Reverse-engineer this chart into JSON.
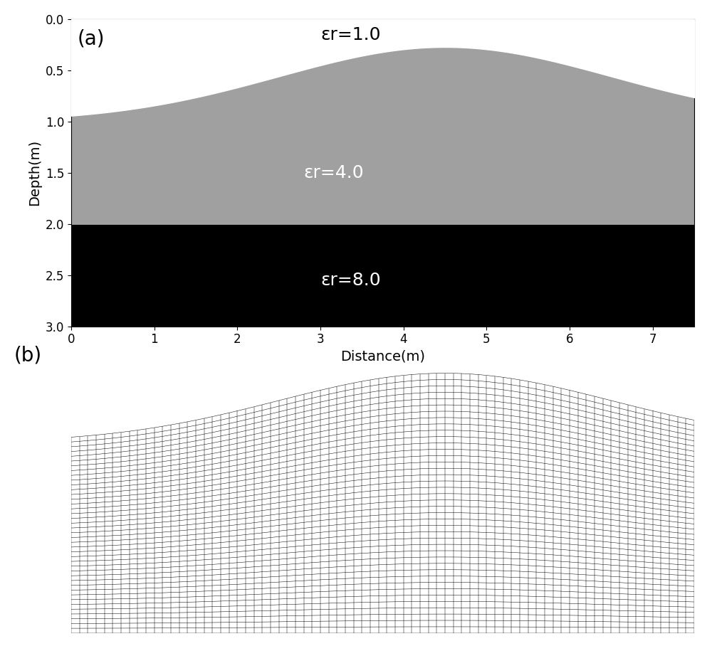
{
  "fig_width": 10.0,
  "fig_height": 9.08,
  "dpi": 100,
  "panel_a": {
    "label": "(a)",
    "label_fontsize": 20,
    "xlabel": "Distance(m)",
    "ylabel": "Depth(m)",
    "xlabel_fontsize": 14,
    "ylabel_fontsize": 14,
    "tick_fontsize": 12,
    "xlim": [
      0,
      7.5
    ],
    "ylim": [
      3.0,
      0.0
    ],
    "xticks": [
      0,
      1,
      2,
      3,
      4,
      5,
      6,
      7
    ],
    "yticks": [
      0.0,
      0.5,
      1.0,
      1.5,
      2.0,
      2.5,
      3.0
    ],
    "color_air": "#ffffff",
    "color_layer1": "#a0a0a0",
    "color_layer2": "#000000",
    "layer2_depth": 2.0,
    "annotation_air": "εr=1.0",
    "annotation_layer1": "εr=4.0",
    "annotation_layer2": "εr=8.0",
    "ann_air_x": 3.0,
    "ann_air_y": 0.15,
    "ann_layer1_x": 2.8,
    "ann_layer1_y": 1.5,
    "ann_layer2_x": 3.0,
    "ann_layer2_y": 2.55,
    "ann_fontsize": 18
  },
  "panel_b": {
    "label": "(b)",
    "label_fontsize": 20,
    "nx": 76,
    "ny": 42,
    "x_start": 0.0,
    "x_end": 7.5,
    "y_bottom": 3.0,
    "grid_color": "#000000",
    "grid_linewidth": 0.35,
    "bg_color": "#ffffff"
  }
}
